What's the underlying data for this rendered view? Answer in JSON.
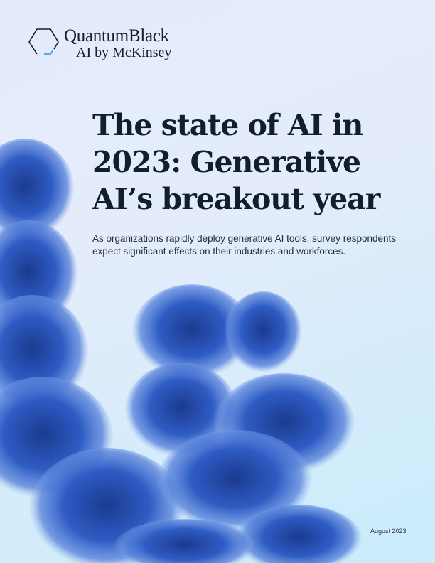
{
  "logo": {
    "line1": "QuantumBlack",
    "line2": "AI by McKinsey",
    "accent_color": "#3aa5e8"
  },
  "title": "The state of AI in 2023: Generative AI’s breakout year",
  "subtitle": "As organizations rapidly deploy generative AI tools, survey respondents expect significant effects on their industries and workforces.",
  "date": "August 2023",
  "colors": {
    "background": "#dfeafb",
    "foliage": "#2a4fb0",
    "text": "#0f1f2e"
  }
}
